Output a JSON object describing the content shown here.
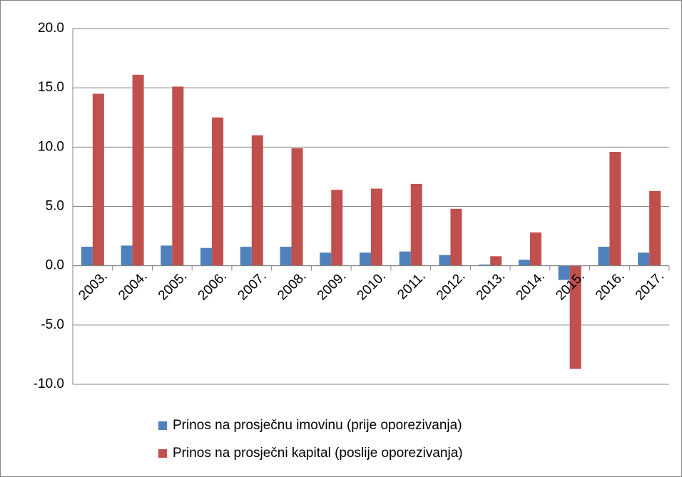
{
  "chart_data": {
    "type": "bar",
    "categories": [
      "2003.",
      "2004.",
      "2005.",
      "2006.",
      "2007.",
      "2008.",
      "2009.",
      "2010.",
      "2011.",
      "2012.",
      "2013.",
      "2014.",
      "2015.",
      "2016.",
      "2017."
    ],
    "series": [
      {
        "name": "Prinos na prosječnu imovinu (prije oporezivanja)",
        "color": "#4f81bd",
        "values": [
          1.6,
          1.7,
          1.7,
          1.5,
          1.6,
          1.6,
          1.1,
          1.1,
          1.2,
          0.9,
          0.1,
          0.5,
          -1.2,
          1.6,
          1.1
        ]
      },
      {
        "name": "Prinos na prosječni kapital (poslije oporezivanja)",
        "color": "#c0504d",
        "values": [
          14.5,
          16.1,
          15.1,
          12.5,
          11.0,
          9.9,
          6.4,
          6.5,
          6.9,
          4.8,
          0.8,
          2.8,
          -8.7,
          9.6,
          6.3
        ]
      }
    ],
    "ylim": [
      -10,
      20
    ],
    "yticks": [
      {
        "value": -10,
        "label": "-10.0"
      },
      {
        "value": -5,
        "label": "-5.0"
      },
      {
        "value": 0,
        "label": "0.0"
      },
      {
        "value": 5,
        "label": "5.0"
      },
      {
        "value": 10,
        "label": "10.0"
      },
      {
        "value": 15,
        "label": "15.0"
      },
      {
        "value": 20,
        "label": "20.0"
      }
    ],
    "grid": true
  }
}
